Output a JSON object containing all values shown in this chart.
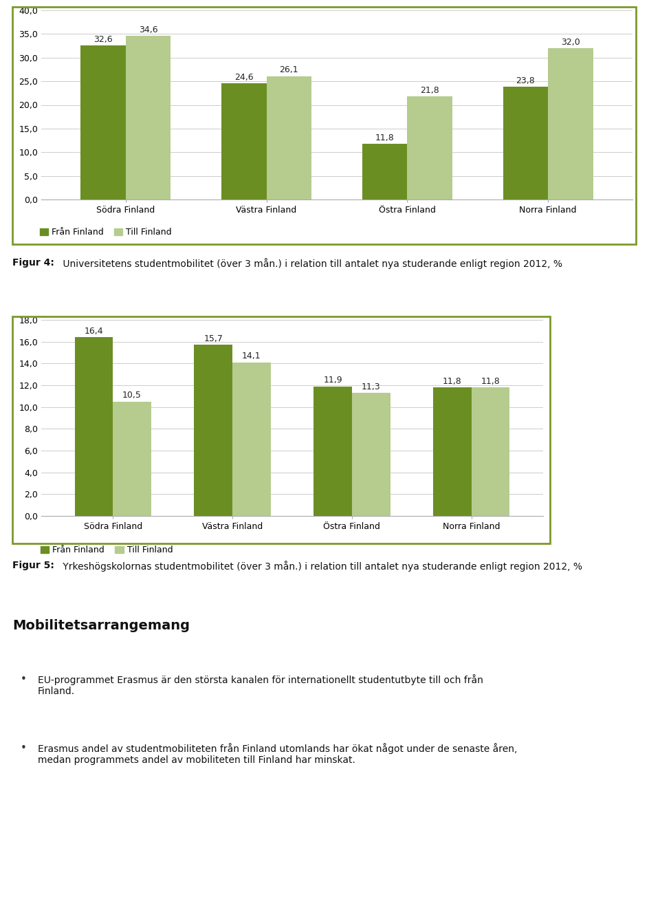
{
  "chart1": {
    "categories": [
      "Södra Finland",
      "Västra Finland",
      "Östra Finland",
      "Norra Finland"
    ],
    "fran_values": [
      32.6,
      24.6,
      11.8,
      23.8
    ],
    "till_values": [
      34.6,
      26.1,
      21.8,
      32.0
    ],
    "ylim": [
      0,
      40
    ],
    "yticks": [
      0.0,
      5.0,
      10.0,
      15.0,
      20.0,
      25.0,
      30.0,
      35.0,
      40.0
    ],
    "color_fran": "#6b8e23",
    "color_till": "#b5cc8e"
  },
  "chart2": {
    "categories": [
      "Södra Finland",
      "Västra Finland",
      "Östra Finland",
      "Norra Finland"
    ],
    "fran_values": [
      16.4,
      15.7,
      11.9,
      11.8
    ],
    "till_values": [
      10.5,
      14.1,
      11.3,
      11.8
    ],
    "ylim": [
      0,
      18
    ],
    "yticks": [
      0.0,
      2.0,
      4.0,
      6.0,
      8.0,
      10.0,
      12.0,
      14.0,
      16.0,
      18.0
    ],
    "color_fran": "#6b8e23",
    "color_till": "#b5cc8e"
  },
  "legend_fran": "Från Finland",
  "legend_till": "Till Finland",
  "fig4_caption_bold": "Figur 4:",
  "fig4_caption_normal": " Universitetens studentmobilitet (över 3 mån.) i relation till antalet nya studerande enligt region 2012, %",
  "fig5_caption_bold": "Figur 5:",
  "fig5_caption_normal": " Yrkeshögskolornas studentmobilitet (över 3 mån.) i relation till antalet nya studerande enligt region 2012, %",
  "section_title": "Mobilitetsarrangemang",
  "bullet1": "EU-programmet Erasmus är den största kanalen för internationellt studentutbyte till och från\nFinland.",
  "bullet2": "Erasmus andel av studentmobiliteten från Finland utomlands har ökat något under de senaste åren,\nmedan programmets andel av mobiliteten till Finland har minskat.",
  "border_color": "#7a9a2a",
  "bg_color": "#ffffff",
  "text_color": "#333333",
  "bar_width": 0.32,
  "value_fontsize": 9,
  "tick_fontsize": 9,
  "legend_fontsize": 9,
  "caption_fontsize": 10,
  "section_fontsize": 14,
  "bullet_fontsize": 10
}
